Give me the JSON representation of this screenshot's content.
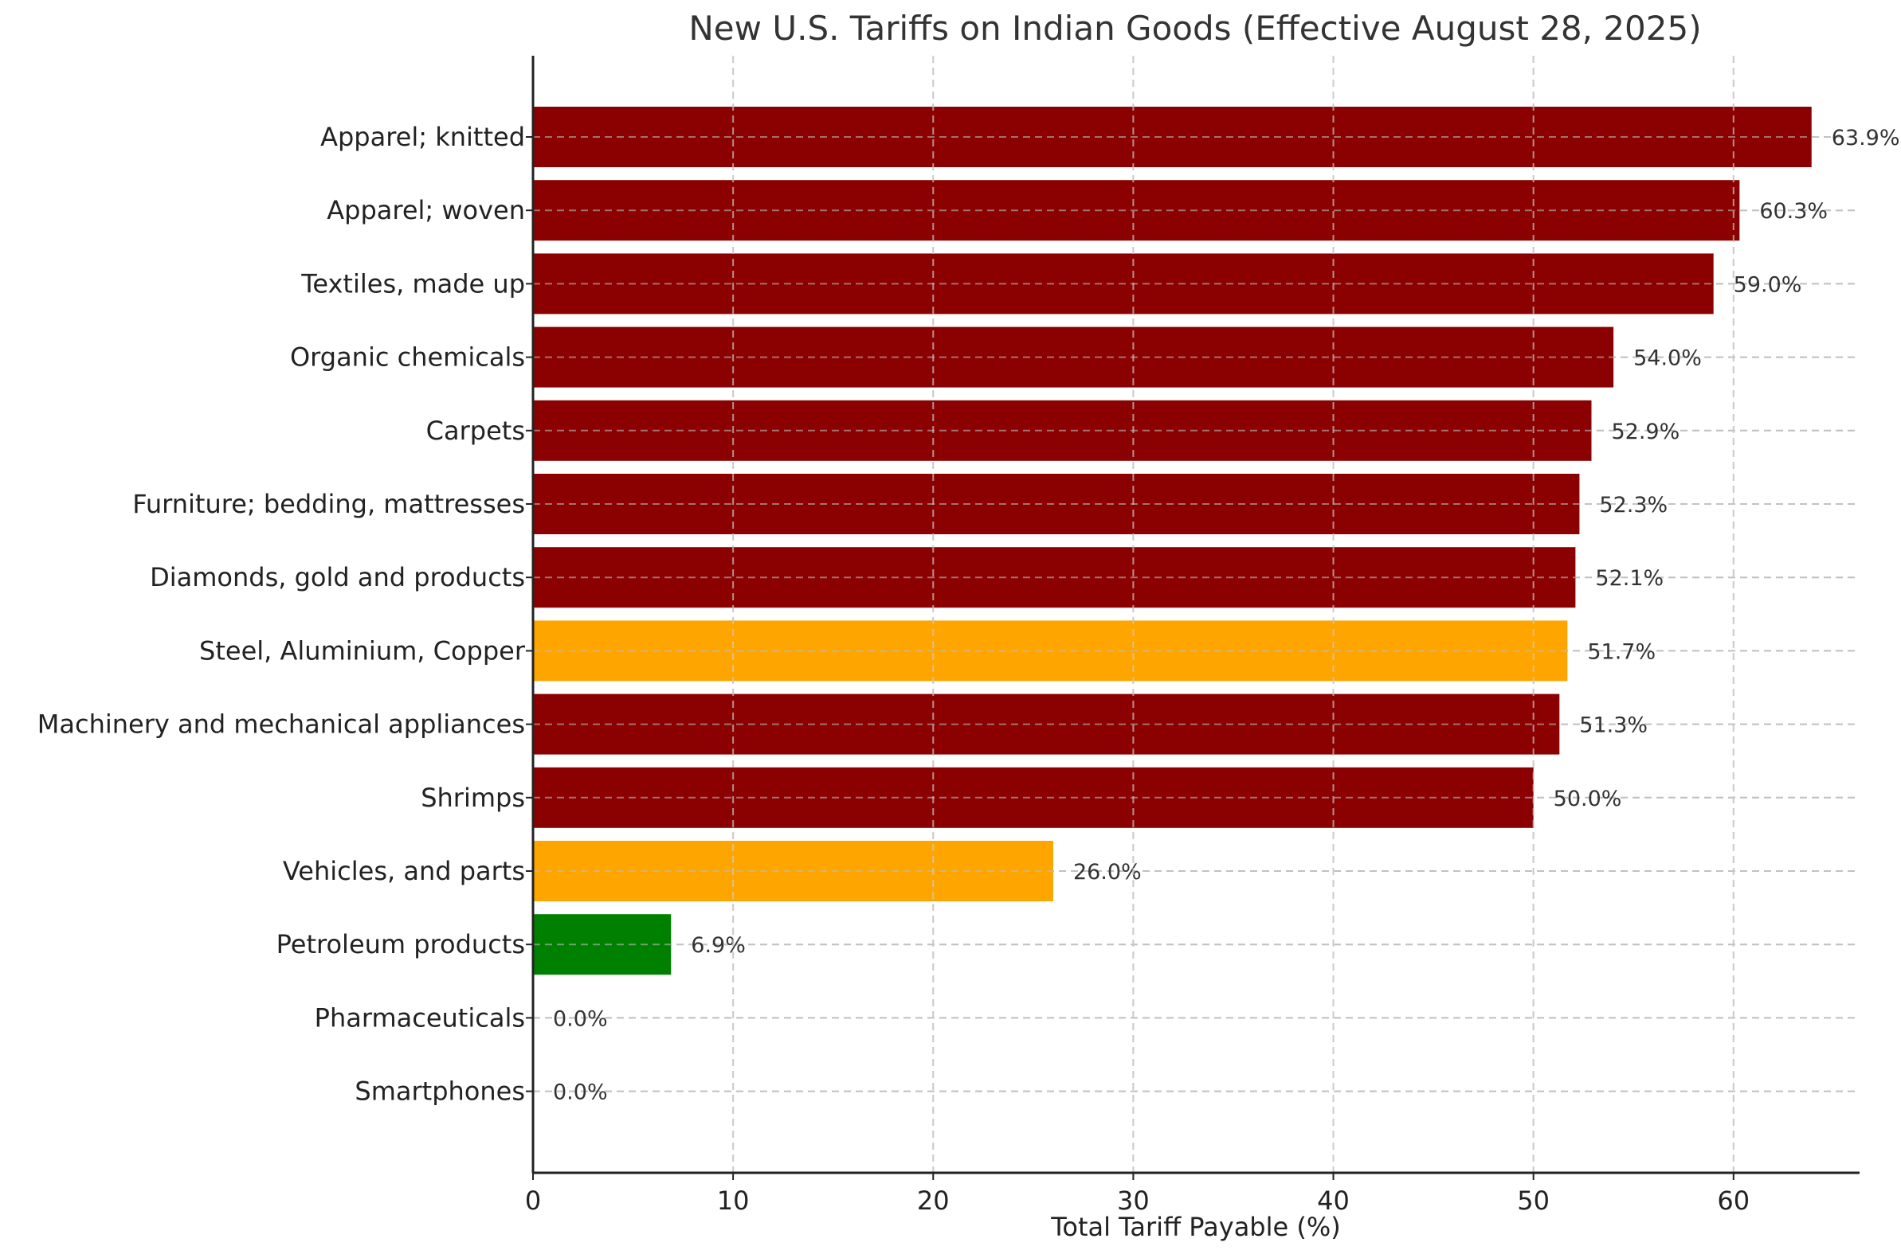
{
  "chart_data": {
    "type": "bar",
    "orientation": "horizontal",
    "title": "New U.S. Tariffs on Indian Goods (Effective August 28, 2025)",
    "xlabel": "Total Tariff Payable (%)",
    "ylabel": "",
    "xlim": [
      0,
      66.3
    ],
    "xticks": [
      0,
      10,
      20,
      30,
      40,
      50,
      60
    ],
    "xtick_labels": [
      "0",
      "10",
      "20",
      "30",
      "40",
      "50",
      "60"
    ],
    "grid": true,
    "grid_style": "dashed",
    "legend": null,
    "colors": {
      "high": "#8b0000",
      "medium": "#ffa500",
      "low": "#008000"
    },
    "categories": [
      "Apparel; knitted",
      "Apparel; woven",
      "Textiles, made up",
      "Organic chemicals",
      "Carpets",
      "Furniture; bedding, mattresses",
      "Diamonds, gold and products",
      "Steel, Aluminium, Copper",
      "Machinery and mechanical appliances",
      "Shrimps",
      "Vehicles, and parts",
      "Petroleum products",
      "Pharmaceuticals",
      "Smartphones"
    ],
    "values": [
      63.9,
      60.3,
      59.0,
      54.0,
      52.9,
      52.3,
      52.1,
      51.7,
      51.3,
      50.0,
      26.0,
      6.9,
      0.0,
      0.0
    ],
    "bar_colors": [
      "#8b0000",
      "#8b0000",
      "#8b0000",
      "#8b0000",
      "#8b0000",
      "#8b0000",
      "#8b0000",
      "#ffa500",
      "#8b0000",
      "#8b0000",
      "#ffa500",
      "#008000",
      "#8b0000",
      "#8b0000"
    ],
    "data_labels": [
      "63.9%",
      "60.3%",
      "59.0%",
      "54.0%",
      "52.9%",
      "52.3%",
      "52.1%",
      "51.7%",
      "51.3%",
      "50.0%",
      "26.0%",
      "6.9%",
      "0.0%",
      "0.0%"
    ]
  }
}
